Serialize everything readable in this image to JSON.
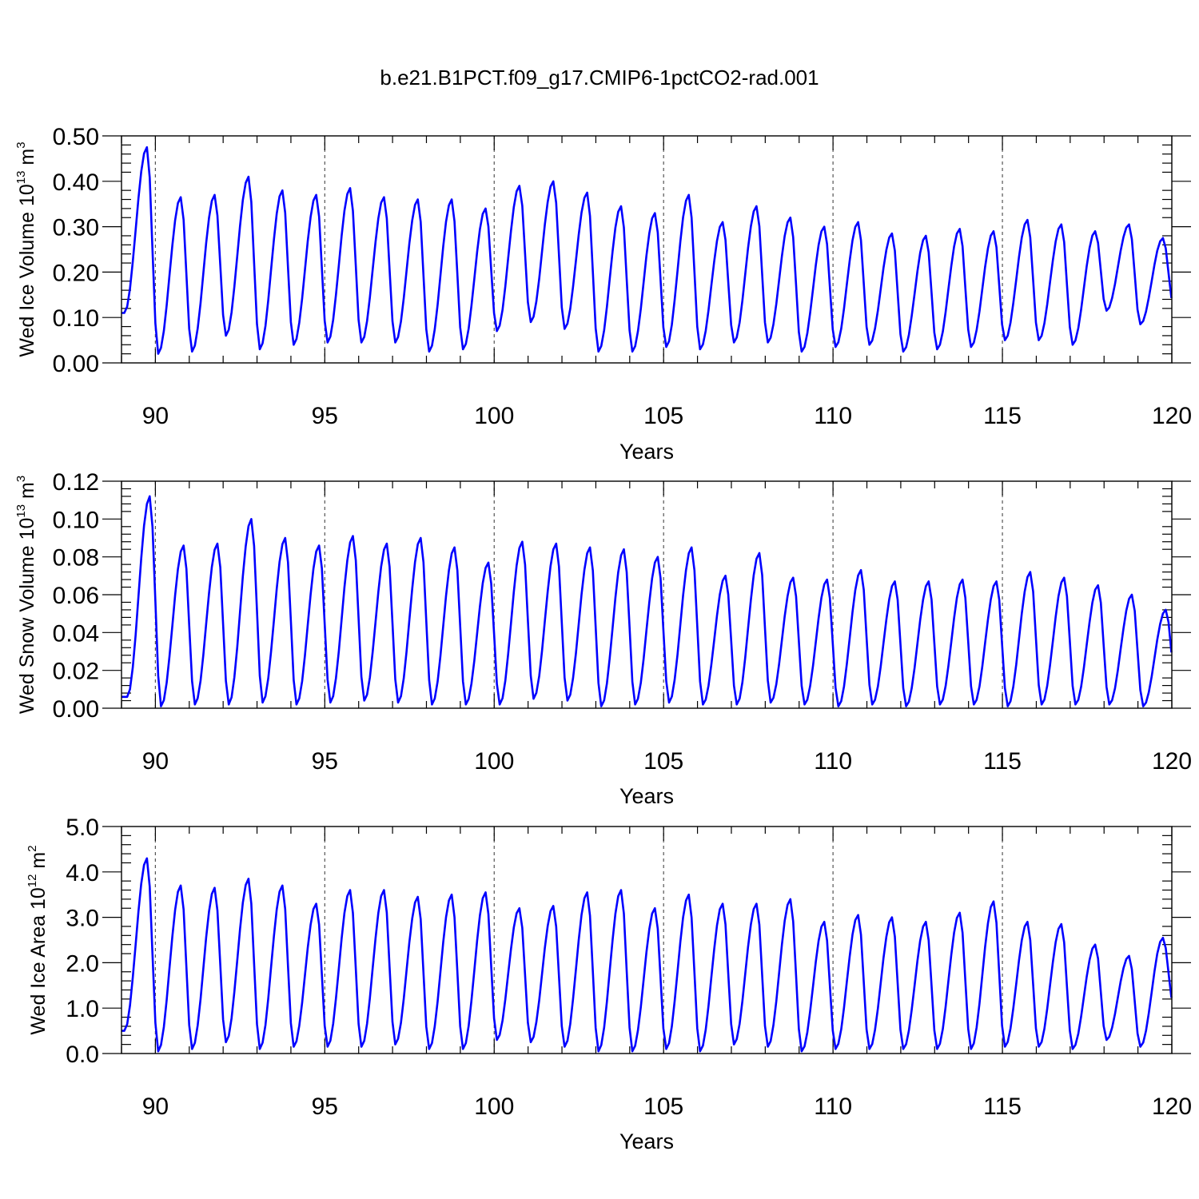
{
  "figure": {
    "title": "b.e21.B1PCT.f09_g17.CMIP6-1pctCO2-rad.001"
  },
  "chart_data": [
    {
      "type": "line",
      "xlabel": "Years",
      "ylabel": {
        "prefix": "Wed Ice Volume 10",
        "exp": "13",
        "unit": " m",
        "unit_exp": "3"
      },
      "xlim": [
        89,
        120
      ],
      "ylim": [
        0,
        0.5
      ],
      "x_ticks": [
        90,
        95,
        100,
        105,
        110,
        115,
        120
      ],
      "y_ticks": [
        0,
        0.1,
        0.2,
        0.3,
        0.4,
        0.5
      ],
      "y_tick_labels": [
        "0.00",
        "0.10",
        "0.20",
        "0.30",
        "0.40",
        "0.50"
      ],
      "y_decimals": 2,
      "line_color": "#0000ff",
      "vertical_grid_years": [
        90,
        95,
        100,
        105,
        110,
        115
      ],
      "series": [
        {
          "x_start": 89.0,
          "x_step": 0.0833,
          "min_month": 1,
          "max_month": 9,
          "minima": [
            0.11,
            0.02,
            0.025,
            0.06,
            0.03,
            0.04,
            0.045,
            0.045,
            0.045,
            0.025,
            0.03,
            0.07,
            0.09,
            0.075,
            0.025,
            0.025,
            0.035,
            0.03,
            0.045,
            0.045,
            0.025,
            0.035,
            0.04,
            0.025,
            0.03,
            0.035,
            0.05,
            0.05,
            0.04,
            0.115,
            0.085,
            0.12
          ],
          "maxima": [
            0.475,
            0.365,
            0.37,
            0.41,
            0.38,
            0.37,
            0.385,
            0.365,
            0.36,
            0.36,
            0.34,
            0.39,
            0.4,
            0.375,
            0.345,
            0.33,
            0.37,
            0.31,
            0.345,
            0.32,
            0.3,
            0.31,
            0.285,
            0.28,
            0.295,
            0.29,
            0.315,
            0.305,
            0.29,
            0.305,
            0.275
          ]
        }
      ]
    },
    {
      "type": "line",
      "xlabel": "Years",
      "ylabel": {
        "prefix": "Wed Snow Volume 10",
        "exp": "13",
        "unit": " m",
        "unit_exp": "3"
      },
      "xlim": [
        89,
        120
      ],
      "ylim": [
        0,
        0.12
      ],
      "x_ticks": [
        90,
        95,
        100,
        105,
        110,
        115,
        120
      ],
      "y_ticks": [
        0,
        0.02,
        0.04,
        0.06,
        0.08,
        0.1,
        0.12
      ],
      "y_tick_labels": [
        "0.00",
        "0.02",
        "0.04",
        "0.06",
        "0.08",
        "0.10",
        "0.12"
      ],
      "y_decimals": 3,
      "line_color": "#0000ff",
      "vertical_grid_years": [
        90,
        95,
        100,
        105,
        110,
        115
      ],
      "series": [
        {
          "x_start": 89.0,
          "x_step": 0.0833,
          "min_month": 2,
          "max_month": 10,
          "minima": [
            0.006,
            0.001,
            0.002,
            0.002,
            0.003,
            0.002,
            0.003,
            0.004,
            0.003,
            0.002,
            0.002,
            0.002,
            0.005,
            0.004,
            0.001,
            0.002,
            0.003,
            0.002,
            0.002,
            0.003,
            0.002,
            0.001,
            0.002,
            0.001,
            0.002,
            0.002,
            0.001,
            0.002,
            0.002,
            0.002,
            0.001,
            0.007
          ],
          "maxima": [
            0.112,
            0.086,
            0.087,
            0.1,
            0.09,
            0.086,
            0.091,
            0.087,
            0.09,
            0.085,
            0.077,
            0.088,
            0.087,
            0.085,
            0.084,
            0.08,
            0.085,
            0.07,
            0.082,
            0.069,
            0.068,
            0.073,
            0.067,
            0.067,
            0.068,
            0.067,
            0.072,
            0.069,
            0.065,
            0.06,
            0.052
          ]
        }
      ]
    },
    {
      "type": "line",
      "xlabel": "Years",
      "ylabel": {
        "prefix": "Wed Ice Area 10",
        "exp": "12",
        "unit": " m",
        "unit_exp": "2"
      },
      "xlim": [
        89,
        120
      ],
      "ylim": [
        0,
        5
      ],
      "x_ticks": [
        90,
        95,
        100,
        105,
        110,
        115,
        120
      ],
      "y_ticks": [
        0,
        1,
        2,
        3,
        4,
        5
      ],
      "y_tick_labels": [
        "0.0",
        "1.0",
        "2.0",
        "3.0",
        "4.0",
        "5.0"
      ],
      "y_decimals": 2,
      "line_color": "#0000ff",
      "vertical_grid_years": [
        90,
        95,
        100,
        105,
        110,
        115
      ],
      "series": [
        {
          "x_start": 89.0,
          "x_step": 0.0833,
          "min_month": 1,
          "max_month": 9,
          "minima": [
            0.5,
            0.05,
            0.1,
            0.25,
            0.1,
            0.15,
            0.15,
            0.15,
            0.2,
            0.1,
            0.1,
            0.3,
            0.25,
            0.15,
            0.05,
            0.05,
            0.1,
            0.05,
            0.2,
            0.15,
            0.05,
            0.1,
            0.1,
            0.1,
            0.1,
            0.1,
            0.15,
            0.15,
            0.1,
            0.3,
            0.15,
            1.0
          ],
          "maxima": [
            4.3,
            3.7,
            3.65,
            3.85,
            3.7,
            3.3,
            3.6,
            3.6,
            3.45,
            3.5,
            3.55,
            3.2,
            3.25,
            3.55,
            3.6,
            3.2,
            3.5,
            3.3,
            3.3,
            3.4,
            2.9,
            3.05,
            3.0,
            2.9,
            3.1,
            3.35,
            2.9,
            2.85,
            2.4,
            2.15,
            2.55
          ]
        }
      ]
    }
  ]
}
